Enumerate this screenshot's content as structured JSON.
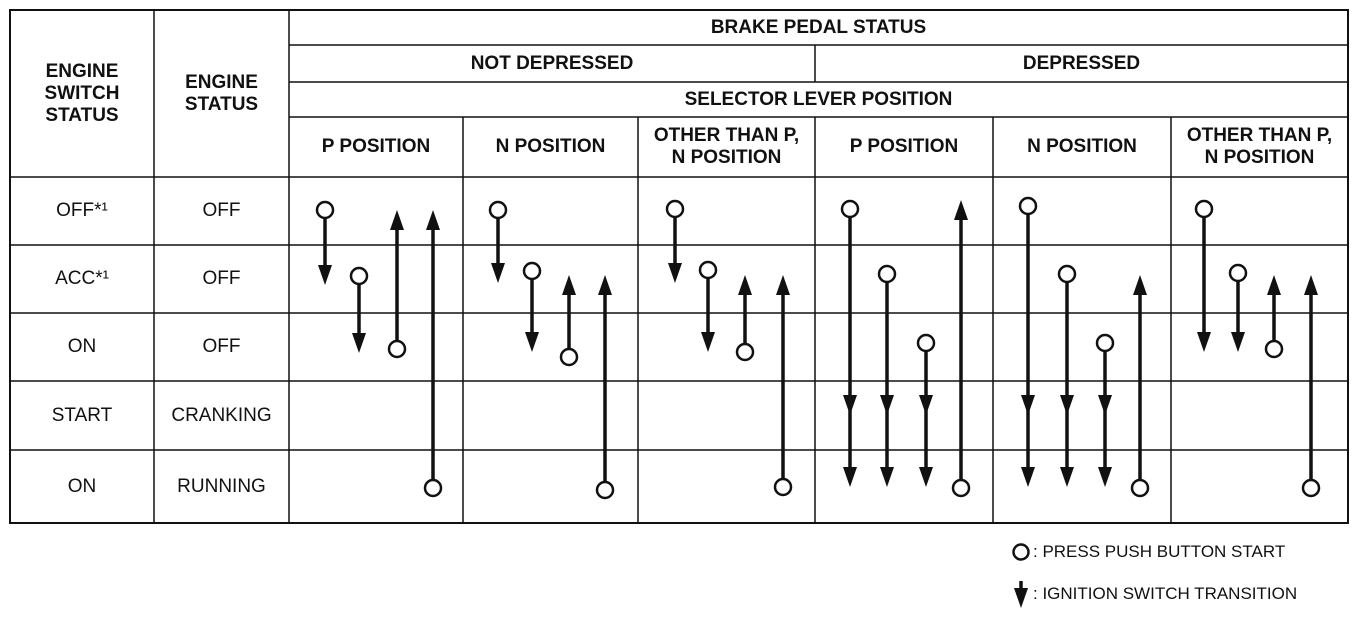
{
  "header": {
    "engine_switch_status": "ENGINE SWITCH STATUS",
    "engine_status": "ENGINE STATUS",
    "brake_pedal_status": "BRAKE PEDAL STATUS",
    "not_depressed": "NOT DEPRESSED",
    "depressed": "DEPRESSED",
    "selector_lever_position": "SELECTOR LEVER POSITION",
    "positions": [
      "P POSITION",
      "N POSITION",
      "OTHER THAN P, N POSITION",
      "P POSITION",
      "N POSITION",
      "OTHER THAN P, N POSITION"
    ]
  },
  "rows": [
    [
      "OFF*¹",
      "OFF"
    ],
    [
      "ACC*¹",
      "OFF"
    ],
    [
      "ON",
      "OFF"
    ],
    [
      "START",
      "CRANKING"
    ],
    [
      "ON",
      "RUNNING"
    ]
  ],
  "legend": [
    ": PRESS PUSH BUTTON START",
    ": IGNITION SWITCH TRANSITION"
  ]
}
